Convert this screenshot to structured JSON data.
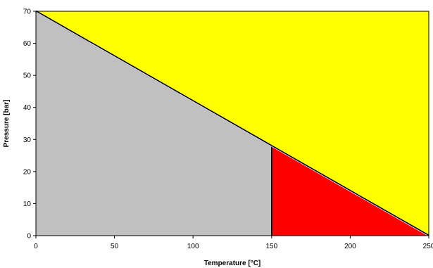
{
  "chart_data": {
    "type": "area",
    "title": "",
    "xlabel": "Temperature [°C]",
    "ylabel": "Pressure [bar]",
    "xlim": [
      0,
      250
    ],
    "ylim": [
      0,
      70
    ],
    "x_ticks": [
      0,
      50,
      100,
      150,
      200,
      250
    ],
    "y_ticks": [
      0,
      10,
      20,
      30,
      40,
      50,
      60,
      70
    ],
    "grid": false,
    "legend": "none",
    "regions": [
      {
        "color": "#FFFF00",
        "polygon": [
          [
            0,
            70
          ],
          [
            250,
            70
          ],
          [
            250,
            0
          ]
        ]
      },
      {
        "color": "#C0C0C0",
        "polygon": [
          [
            0,
            0
          ],
          [
            0,
            70
          ],
          [
            150,
            28
          ],
          [
            150,
            0
          ]
        ]
      },
      {
        "color": "#FF0000",
        "polygon": [
          [
            150,
            0
          ],
          [
            150,
            28
          ],
          [
            250,
            0
          ]
        ]
      }
    ],
    "series": [
      {
        "x": [
          0,
          250
        ],
        "y": [
          70,
          0
        ],
        "color": "#000000"
      },
      {
        "x": [
          150,
          150
        ],
        "y": [
          0,
          28
        ],
        "color": "#000000"
      }
    ]
  }
}
